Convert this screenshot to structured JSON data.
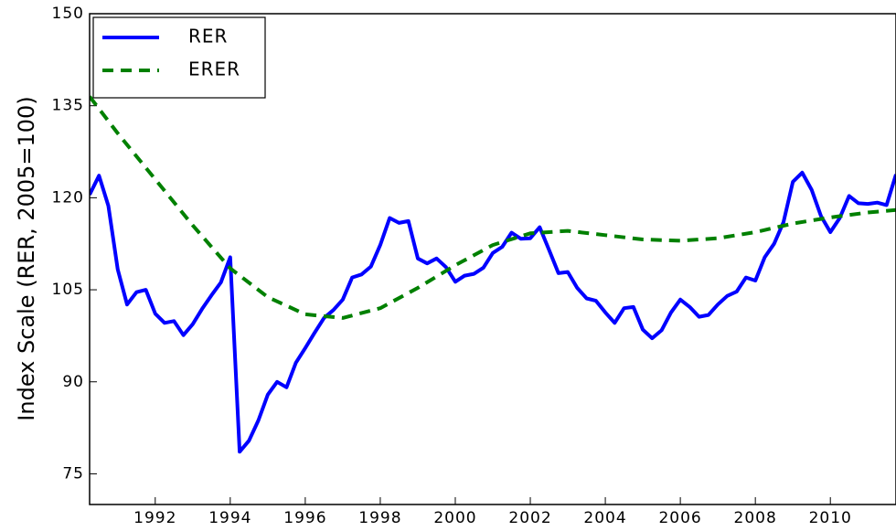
{
  "chart_data": {
    "type": "line",
    "ylabel": "Index Scale (RER, 2005=100)",
    "xlim": [
      1990.25,
      2011.75
    ],
    "ylim": [
      70,
      150
    ],
    "xticks": [
      1992,
      1994,
      1996,
      1998,
      2000,
      2002,
      2004,
      2006,
      2008,
      2010
    ],
    "yticks": [
      75,
      90,
      105,
      120,
      135,
      150
    ],
    "legend": "upper left",
    "series": [
      {
        "name": "RER",
        "color": "#0000ff",
        "dash": "solid",
        "x": [
          1990.25,
          1990.5,
          1990.75,
          1991,
          1991.25,
          1991.5,
          1991.75,
          1992,
          1992.25,
          1992.5,
          1992.75,
          1993,
          1993.25,
          1993.5,
          1993.75,
          1994,
          1994.25,
          1994.5,
          1994.75,
          1995,
          1995.25,
          1995.5,
          1995.75,
          1996,
          1996.25,
          1996.5,
          1996.75,
          1997,
          1997.25,
          1997.5,
          1997.75,
          1998,
          1998.25,
          1998.5,
          1998.75,
          1999,
          1999.25,
          1999.5,
          1999.75,
          2000,
          2000.25,
          2000.5,
          2000.75,
          2001,
          2001.25,
          2001.5,
          2001.75,
          2002,
          2002.25,
          2002.5,
          2002.75,
          2003,
          2003.25,
          2003.5,
          2003.75,
          2004,
          2004.25,
          2004.5,
          2004.75,
          2005,
          2005.25,
          2005.5,
          2005.75,
          2006,
          2006.25,
          2006.5,
          2006.75,
          2007,
          2007.25,
          2007.5,
          2007.75,
          2008,
          2008.25,
          2008.5,
          2008.75,
          2009,
          2009.25,
          2009.5,
          2009.75,
          2010,
          2010.25,
          2010.5,
          2010.75,
          2011,
          2011.25,
          2011.5,
          2011.75
        ],
        "values": [
          120.5,
          123.6,
          118.7,
          108.3,
          102.6,
          104.6,
          105.0,
          101.1,
          99.6,
          99.9,
          97.6,
          99.4,
          101.9,
          104.1,
          106.2,
          110.3,
          78.6,
          80.4,
          83.7,
          87.9,
          90.0,
          89.1,
          93.1,
          95.5,
          98.0,
          100.4,
          101.7,
          103.4,
          107.0,
          107.5,
          108.8,
          112.3,
          116.7,
          115.9,
          116.2,
          110.1,
          109.3,
          110.1,
          108.7,
          106.3,
          107.3,
          107.6,
          108.6,
          111.0,
          112.0,
          114.3,
          113.3,
          113.4,
          115.2,
          111.5,
          107.7,
          107.9,
          105.3,
          103.6,
          103.2,
          101.3,
          99.6,
          102.0,
          102.2,
          98.5,
          97.1,
          98.4,
          101.3,
          103.4,
          102.2,
          100.6,
          100.9,
          102.6,
          104.0,
          104.7,
          107.0,
          106.5,
          110.3,
          112.5,
          116.0,
          122.6,
          124.1,
          121.3,
          117.0,
          114.4,
          116.7,
          120.3,
          119.1,
          119.0,
          119.2,
          118.8,
          123.8
        ]
      },
      {
        "name": "ERER",
        "color": "#008000",
        "dash": "dashed",
        "x": [
          1990.25,
          1991,
          1992,
          1993,
          1994,
          1995,
          1996,
          1997,
          1998,
          1999,
          2000,
          2001,
          2002,
          2003,
          2004,
          2005,
          2006,
          2007,
          2008,
          2009,
          2010,
          2011,
          2011.75
        ],
        "values": [
          136.5,
          130.5,
          123.0,
          115.5,
          108.5,
          103.8,
          101.0,
          100.4,
          102.0,
          105.3,
          109.0,
          112.3,
          114.2,
          114.6,
          113.9,
          113.2,
          113.0,
          113.4,
          114.4,
          115.8,
          116.8,
          117.6,
          118.0
        ]
      }
    ]
  }
}
